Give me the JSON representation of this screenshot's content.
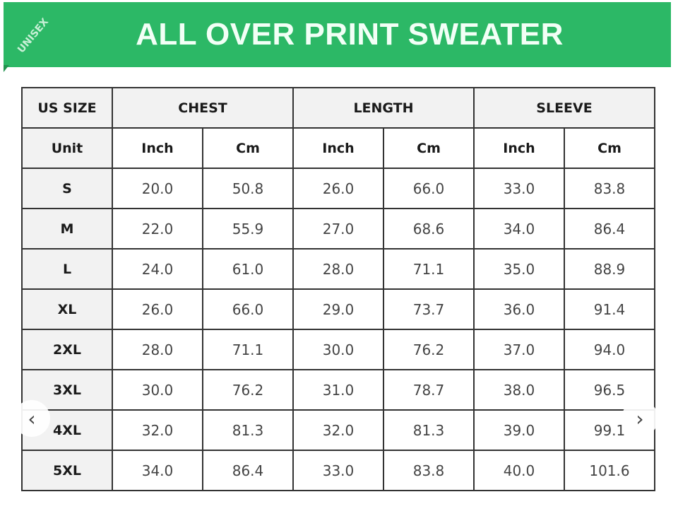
{
  "banner": {
    "title": "ALL OVER PRINT SWEATER",
    "badge": "UNISEX",
    "color": "#2cb866"
  },
  "table": {
    "header": {
      "size": "US SIZE",
      "groups": [
        "CHEST",
        "LENGTH",
        "SLEEVE"
      ]
    },
    "units": {
      "label": "Unit",
      "cols": [
        "Inch",
        "Cm",
        "Inch",
        "Cm",
        "Inch",
        "Cm"
      ]
    },
    "rows": [
      [
        "S",
        "20.0",
        "50.8",
        "26.0",
        "66.0",
        "33.0",
        "83.8"
      ],
      [
        "M",
        "22.0",
        "55.9",
        "27.0",
        "68.6",
        "34.0",
        "86.4"
      ],
      [
        "L",
        "24.0",
        "61.0",
        "28.0",
        "71.1",
        "35.0",
        "88.9"
      ],
      [
        "XL",
        "26.0",
        "66.0",
        "29.0",
        "73.7",
        "36.0",
        "91.4"
      ],
      [
        "2XL",
        "28.0",
        "71.1",
        "30.0",
        "76.2",
        "37.0",
        "94.0"
      ],
      [
        "3XL",
        "30.0",
        "76.2",
        "31.0",
        "78.7",
        "38.0",
        "96.5"
      ],
      [
        "4XL",
        "32.0",
        "81.3",
        "32.0",
        "81.3",
        "39.0",
        "99.1"
      ],
      [
        "5XL",
        "34.0",
        "86.4",
        "33.0",
        "83.8",
        "40.0",
        "101.6"
      ]
    ]
  },
  "carousel": {
    "prev_icon": "chevron-left-icon",
    "next_icon": "chevron-right-icon",
    "prev": "‹",
    "next": "›"
  }
}
